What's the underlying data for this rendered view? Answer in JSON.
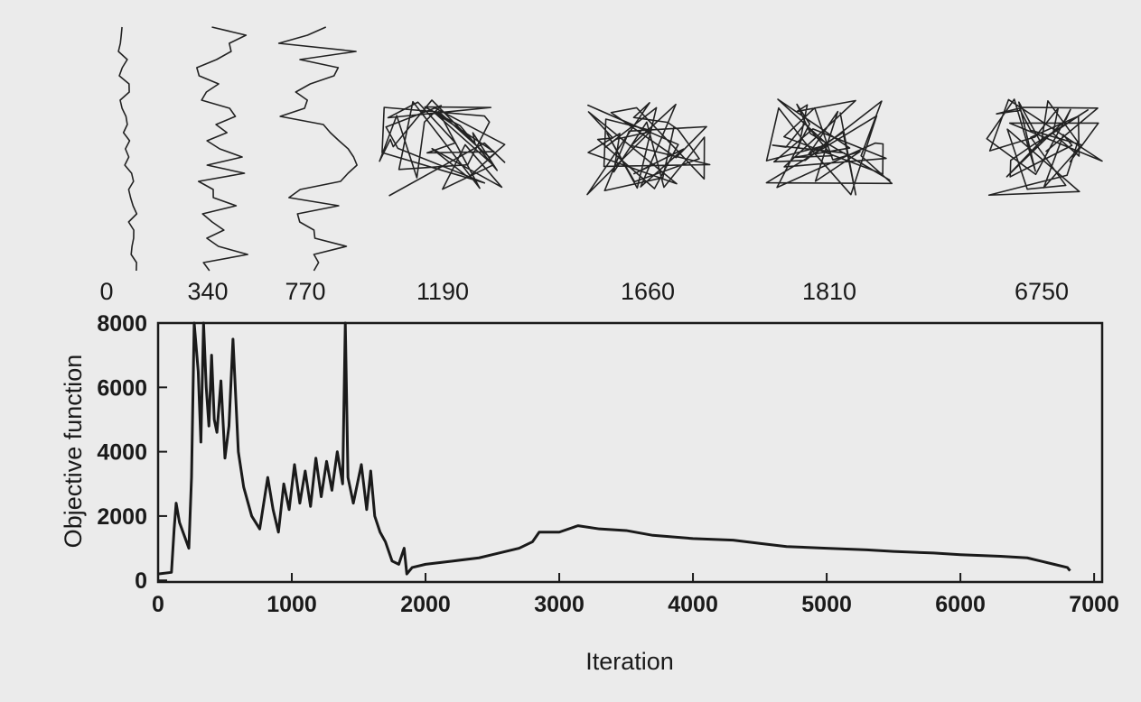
{
  "chart_data": {
    "type": "line",
    "snapshot_labels": [
      "0",
      "340",
      "770",
      "1190",
      "1660",
      "1810",
      "6750"
    ],
    "y_label": "Objective function",
    "x_label": "Iteration",
    "xlim": [
      0,
      7060
    ],
    "ylim": [
      -50,
      8000
    ],
    "xticks": [
      0,
      1000,
      2000,
      3000,
      4000,
      5000,
      6000,
      7000
    ],
    "yticks": [
      0,
      2000,
      4000,
      6000,
      8000
    ],
    "color": "#1a1a1a",
    "series": [
      {
        "name": "Objective function",
        "x": [
          0,
          100,
          120,
          135,
          160,
          230,
          250,
          270,
          300,
          320,
          340,
          360,
          380,
          400,
          420,
          440,
          470,
          500,
          530,
          560,
          600,
          640,
          700,
          760,
          820,
          860,
          900,
          940,
          980,
          1020,
          1060,
          1100,
          1140,
          1180,
          1220,
          1260,
          1300,
          1340,
          1380,
          1400,
          1420,
          1460,
          1520,
          1560,
          1590,
          1620,
          1660,
          1700,
          1750,
          1800,
          1840,
          1860,
          1900,
          2000,
          2200,
          2400,
          2500,
          2700,
          2800,
          2850,
          3000,
          3140,
          3300,
          3500,
          3700,
          4000,
          4300,
          4500,
          4700,
          5000,
          5300,
          5500,
          5800,
          6000,
          6300,
          6500,
          6600,
          6700,
          6800,
          6820
        ],
        "values": [
          200,
          250,
          1600,
          2400,
          1800,
          1000,
          3200,
          8000,
          6500,
          4300,
          8000,
          6000,
          4800,
          7000,
          5000,
          4600,
          6200,
          3800,
          4800,
          7500,
          4000,
          2900,
          2000,
          1600,
          3200,
          2200,
          1500,
          3000,
          2200,
          3600,
          2400,
          3400,
          2300,
          3800,
          2600,
          3700,
          2800,
          4000,
          3000,
          8000,
          3200,
          2400,
          3600,
          2200,
          3400,
          2000,
          1500,
          1200,
          600,
          500,
          1000,
          200,
          400,
          500,
          600,
          700,
          800,
          1000,
          1200,
          1500,
          1500,
          1700,
          1600,
          1550,
          1400,
          1300,
          1250,
          1150,
          1050,
          1000,
          950,
          900,
          850,
          800,
          750,
          700,
          600,
          500,
          400,
          300
        ]
      }
    ]
  }
}
